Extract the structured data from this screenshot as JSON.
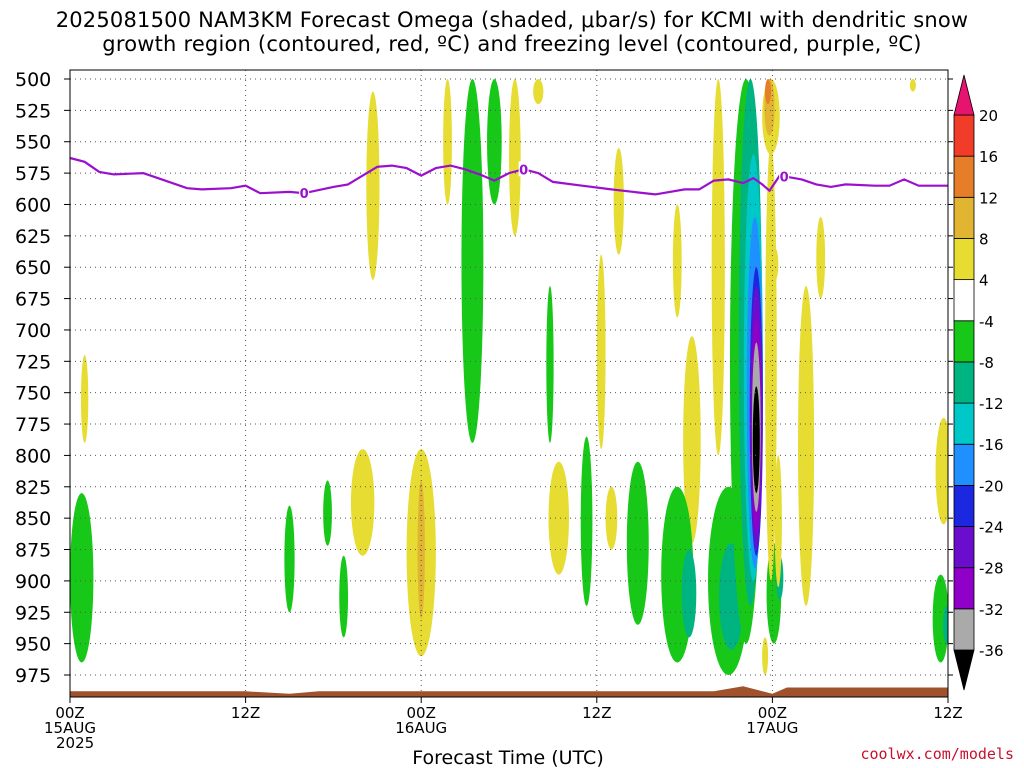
{
  "title_line1": "2025081500 NAM3KM Forecast Omega (shaded, μbar/s) for KCMI with dendritic snow",
  "title_line2": "growth region (contoured, red, ºC) and freezing level (contoured, purple, ºC)",
  "credit": "coolwx.com/models",
  "colors": {
    "freezing_level": "#9b0fcf",
    "ground": "#a0522d",
    "grid": "#555555"
  },
  "chart_data": {
    "type": "heatmap",
    "title": "2025081500 NAM3KM Forecast Omega (shaded, μbar/s) for KCMI with dendritic snow growth region (contoured, red, ºC) and freezing level (contoured, purple, ºC)",
    "xlabel": "Forecast Time (UTC)",
    "ylabel": "",
    "x_range_hours": [
      0,
      60
    ],
    "y_range_mb": [
      975,
      500
    ],
    "y_ticks": [
      500,
      525,
      550,
      575,
      600,
      625,
      650,
      675,
      700,
      725,
      750,
      775,
      800,
      825,
      850,
      875,
      900,
      925,
      950,
      975
    ],
    "x_ticks": [
      {
        "hour": 0,
        "lines": [
          "00Z",
          "15AUG",
          "2025"
        ]
      },
      {
        "hour": 12,
        "lines": [
          "12Z"
        ]
      },
      {
        "hour": 24,
        "lines": [
          "00Z",
          "16AUG"
        ]
      },
      {
        "hour": 36,
        "lines": [
          "12Z"
        ]
      },
      {
        "hour": 48,
        "lines": [
          "00Z",
          "17AUG"
        ]
      },
      {
        "hour": 60,
        "lines": [
          "12Z"
        ]
      }
    ],
    "grid": true,
    "colorbar": {
      "placement": "right",
      "bins": [
        {
          "color": "#000000"
        },
        {
          "color": "#aaaaaa"
        },
        {
          "color": "#9000c8"
        },
        {
          "color": "#6a0dcc"
        },
        {
          "color": "#1c28e0"
        },
        {
          "color": "#1e90ff"
        },
        {
          "color": "#00c8c8"
        },
        {
          "color": "#00b482"
        },
        {
          "color": "#18c818"
        },
        {
          "color": "#ffffff"
        },
        {
          "color": "#e6dc32"
        },
        {
          "color": "#e1b432"
        },
        {
          "color": "#e67d28"
        },
        {
          "color": "#f03c28"
        },
        {
          "color": "#e6146e"
        }
      ],
      "labels": [
        "-36",
        "-32",
        "-28",
        "-24",
        "-20",
        "-16",
        "-12",
        "-8",
        "-4",
        "4",
        "8",
        "12",
        "16",
        "20"
      ]
    },
    "freezing_level": {
      "label": "0",
      "label_hours": [
        16,
        31,
        48.8
      ],
      "points": [
        {
          "hour": 0,
          "mb": 563
        },
        {
          "hour": 1,
          "mb": 566
        },
        {
          "hour": 2,
          "mb": 574
        },
        {
          "hour": 3,
          "mb": 576
        },
        {
          "hour": 5,
          "mb": 575
        },
        {
          "hour": 6,
          "mb": 579
        },
        {
          "hour": 8,
          "mb": 587
        },
        {
          "hour": 9,
          "mb": 588
        },
        {
          "hour": 11,
          "mb": 587
        },
        {
          "hour": 12,
          "mb": 585
        },
        {
          "hour": 13,
          "mb": 591
        },
        {
          "hour": 15,
          "mb": 590
        },
        {
          "hour": 16,
          "mb": 591
        },
        {
          "hour": 18,
          "mb": 586
        },
        {
          "hour": 19,
          "mb": 584
        },
        {
          "hour": 20,
          "mb": 577
        },
        {
          "hour": 21,
          "mb": 570
        },
        {
          "hour": 22,
          "mb": 569
        },
        {
          "hour": 23,
          "mb": 571
        },
        {
          "hour": 24,
          "mb": 577
        },
        {
          "hour": 25,
          "mb": 571
        },
        {
          "hour": 26,
          "mb": 569
        },
        {
          "hour": 27,
          "mb": 572
        },
        {
          "hour": 28,
          "mb": 576
        },
        {
          "hour": 29,
          "mb": 581
        },
        {
          "hour": 30,
          "mb": 575
        },
        {
          "hour": 31,
          "mb": 572
        },
        {
          "hour": 32,
          "mb": 575
        },
        {
          "hour": 33,
          "mb": 582
        },
        {
          "hour": 35,
          "mb": 585
        },
        {
          "hour": 37,
          "mb": 588
        },
        {
          "hour": 40,
          "mb": 592
        },
        {
          "hour": 42,
          "mb": 588
        },
        {
          "hour": 43,
          "mb": 588
        },
        {
          "hour": 44,
          "mb": 581
        },
        {
          "hour": 45,
          "mb": 580
        },
        {
          "hour": 46,
          "mb": 583
        },
        {
          "hour": 46.7,
          "mb": 579
        },
        {
          "hour": 47.3,
          "mb": 584
        },
        {
          "hour": 47.8,
          "mb": 589
        },
        {
          "hour": 48.5,
          "mb": 577
        },
        {
          "hour": 50,
          "mb": 580
        },
        {
          "hour": 51,
          "mb": 584
        },
        {
          "hour": 52,
          "mb": 586
        },
        {
          "hour": 53,
          "mb": 584
        },
        {
          "hour": 55,
          "mb": 585
        },
        {
          "hour": 56,
          "mb": 585
        },
        {
          "hour": 57,
          "mb": 580
        },
        {
          "hour": 58,
          "mb": 585
        },
        {
          "hour": 60,
          "mb": 585
        }
      ]
    },
    "ground_top_mb": [
      {
        "hour": 0,
        "mb": 988
      },
      {
        "hour": 12,
        "mb": 988
      },
      {
        "hour": 15,
        "mb": 990
      },
      {
        "hour": 17,
        "mb": 988
      },
      {
        "hour": 30,
        "mb": 988
      },
      {
        "hour": 44,
        "mb": 988
      },
      {
        "hour": 46,
        "mb": 984
      },
      {
        "hour": 48,
        "mb": 990
      },
      {
        "hour": 49,
        "mb": 985
      },
      {
        "hour": 60,
        "mb": 985
      }
    ],
    "omega_features": [
      {
        "hour": 0.8,
        "mb_top": 830,
        "mb_bottom": 965,
        "half_width_h": 0.8,
        "value": -6
      },
      {
        "hour": 1.0,
        "mb_top": 720,
        "mb_bottom": 790,
        "half_width_h": 0.25,
        "value": 5
      },
      {
        "hour": 15.0,
        "mb_top": 840,
        "mb_bottom": 925,
        "half_width_h": 0.35,
        "value": -6
      },
      {
        "hour": 17.6,
        "mb_top": 820,
        "mb_bottom": 872,
        "half_width_h": 0.3,
        "value": -6
      },
      {
        "hour": 18.7,
        "mb_top": 880,
        "mb_bottom": 945,
        "half_width_h": 0.3,
        "value": -6
      },
      {
        "hour": 20.0,
        "mb_top": 795,
        "mb_bottom": 880,
        "half_width_h": 0.8,
        "value": 5
      },
      {
        "hour": 20.7,
        "mb_top": 510,
        "mb_bottom": 660,
        "half_width_h": 0.45,
        "value": 5
      },
      {
        "hour": 24.0,
        "mb_top": 795,
        "mb_bottom": 960,
        "half_width_h": 1.0,
        "value": 5
      },
      {
        "hour": 24.0,
        "mb_top": 820,
        "mb_bottom": 930,
        "half_width_h": 0.25,
        "value": 9
      },
      {
        "hour": 25.8,
        "mb_top": 500,
        "mb_bottom": 600,
        "half_width_h": 0.3,
        "value": 5
      },
      {
        "hour": 27.5,
        "mb_top": 500,
        "mb_bottom": 790,
        "half_width_h": 0.75,
        "value": -6
      },
      {
        "hour": 30.4,
        "mb_top": 500,
        "mb_bottom": 625,
        "half_width_h": 0.4,
        "value": 5
      },
      {
        "hour": 29.0,
        "mb_top": 500,
        "mb_bottom": 600,
        "half_width_h": 0.5,
        "value": -6
      },
      {
        "hour": 32.0,
        "mb_top": 500,
        "mb_bottom": 520,
        "half_width_h": 0.35,
        "value": 5
      },
      {
        "hour": 32.8,
        "mb_top": 665,
        "mb_bottom": 790,
        "half_width_h": 0.25,
        "value": -6
      },
      {
        "hour": 33.4,
        "mb_top": 805,
        "mb_bottom": 895,
        "half_width_h": 0.7,
        "value": 5
      },
      {
        "hour": 35.3,
        "mb_top": 785,
        "mb_bottom": 920,
        "half_width_h": 0.4,
        "value": -6
      },
      {
        "hour": 36.3,
        "mb_top": 640,
        "mb_bottom": 795,
        "half_width_h": 0.3,
        "value": 5
      },
      {
        "hour": 37.0,
        "mb_top": 825,
        "mb_bottom": 875,
        "half_width_h": 0.4,
        "value": 5
      },
      {
        "hour": 38.8,
        "mb_top": 805,
        "mb_bottom": 935,
        "half_width_h": 0.75,
        "value": -6
      },
      {
        "hour": 37.5,
        "mb_top": 555,
        "mb_bottom": 640,
        "half_width_h": 0.35,
        "value": 5
      },
      {
        "hour": 41.5,
        "mb_top": 600,
        "mb_bottom": 690,
        "half_width_h": 0.3,
        "value": 5
      },
      {
        "hour": 42.5,
        "mb_top": 705,
        "mb_bottom": 870,
        "half_width_h": 0.6,
        "value": 5
      },
      {
        "hour": 41.5,
        "mb_top": 825,
        "mb_bottom": 965,
        "half_width_h": 1.1,
        "value": -6
      },
      {
        "hour": 42.3,
        "mb_top": 875,
        "mb_bottom": 945,
        "half_width_h": 0.5,
        "value": -11
      },
      {
        "hour": 44.3,
        "mb_top": 500,
        "mb_bottom": 800,
        "half_width_h": 0.45,
        "value": 5
      },
      {
        "hour": 45.0,
        "mb_top": 825,
        "mb_bottom": 975,
        "half_width_h": 1.4,
        "value": -6
      },
      {
        "hour": 45.2,
        "mb_top": 870,
        "mb_bottom": 955,
        "half_width_h": 0.85,
        "value": -11
      },
      {
        "hour": 45.9,
        "mb_top": 850,
        "mb_bottom": 925,
        "half_width_h": 0.35,
        "value": -15
      },
      {
        "hour": 46.2,
        "mb_top": 500,
        "mb_bottom": 950,
        "half_width_h": 1.1,
        "value": -6
      },
      {
        "hour": 46.5,
        "mb_top": 500,
        "mb_bottom": 920,
        "half_width_h": 0.8,
        "value": -11
      },
      {
        "hour": 46.7,
        "mb_top": 560,
        "mb_bottom": 900,
        "half_width_h": 0.65,
        "value": -15
      },
      {
        "hour": 46.8,
        "mb_top": 610,
        "mb_bottom": 890,
        "half_width_h": 0.55,
        "value": -18
      },
      {
        "hour": 46.9,
        "mb_top": 650,
        "mb_bottom": 880,
        "half_width_h": 0.45,
        "value": -22
      },
      {
        "hour": 46.9,
        "mb_top": 665,
        "mb_bottom": 875,
        "half_width_h": 0.42,
        "value": -26
      },
      {
        "hour": 46.9,
        "mb_top": 690,
        "mb_bottom": 862,
        "half_width_h": 0.36,
        "value": -30
      },
      {
        "hour": 46.9,
        "mb_top": 710,
        "mb_bottom": 845,
        "half_width_h": 0.3,
        "value": -34
      },
      {
        "hour": 46.9,
        "mb_top": 745,
        "mb_bottom": 830,
        "half_width_h": 0.24,
        "value": -38
      },
      {
        "hour": 48.1,
        "mb_top": 870,
        "mb_bottom": 950,
        "half_width_h": 0.5,
        "value": -6
      },
      {
        "hour": 48.5,
        "mb_top": 880,
        "mb_bottom": 915,
        "half_width_h": 0.25,
        "value": -11
      },
      {
        "hour": 47.5,
        "mb_top": 945,
        "mb_bottom": 975,
        "half_width_h": 0.15,
        "value": 5
      },
      {
        "hour": 47.9,
        "mb_top": 550,
        "mb_bottom": 900,
        "half_width_h": 0.4,
        "value": 5
      },
      {
        "hour": 47.9,
        "mb_top": 500,
        "mb_bottom": 560,
        "half_width_h": 0.6,
        "value": 5
      },
      {
        "hour": 47.8,
        "mb_top": 500,
        "mb_bottom": 545,
        "half_width_h": 0.35,
        "value": 9
      },
      {
        "hour": 47.7,
        "mb_top": 500,
        "mb_bottom": 520,
        "half_width_h": 0.2,
        "value": 14
      },
      {
        "hour": 48.4,
        "mb_top": 800,
        "mb_bottom": 905,
        "half_width_h": 0.25,
        "value": 5
      },
      {
        "hour": 48.2,
        "mb_top": 635,
        "mb_bottom": 660,
        "half_width_h": 0.2,
        "value": 5
      },
      {
        "hour": 50.3,
        "mb_top": 665,
        "mb_bottom": 920,
        "half_width_h": 0.55,
        "value": 5
      },
      {
        "hour": 51.3,
        "mb_top": 610,
        "mb_bottom": 675,
        "half_width_h": 0.3,
        "value": 5
      },
      {
        "hour": 57.6,
        "mb_top": 500,
        "mb_bottom": 510,
        "half_width_h": 0.15,
        "value": 5
      },
      {
        "hour": 59.7,
        "mb_top": 770,
        "mb_bottom": 855,
        "half_width_h": 0.55,
        "value": 5
      },
      {
        "hour": 59.5,
        "mb_top": 895,
        "mb_bottom": 965,
        "half_width_h": 0.55,
        "value": -6
      },
      {
        "hour": 59.9,
        "mb_top": 920,
        "mb_bottom": 950,
        "half_width_h": 0.25,
        "value": -11
      }
    ]
  }
}
